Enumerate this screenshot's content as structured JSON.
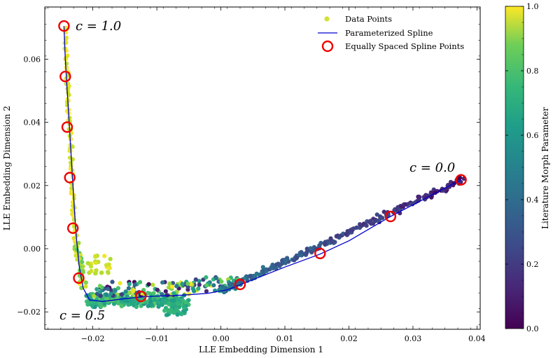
{
  "chart_data": {
    "type": "scatter",
    "xlabel": "LLE Embedding Dimension 1",
    "ylabel": "LLE Embedding Dimension 2",
    "xlim": [
      -0.0275,
      0.0405
    ],
    "ylim": [
      -0.0255,
      0.0765
    ],
    "x_ticks": [
      -0.02,
      -0.01,
      0.0,
      0.01,
      0.02,
      0.03,
      0.04
    ],
    "y_ticks": [
      -0.02,
      0.0,
      0.02,
      0.04,
      0.06
    ],
    "x_tick_labels": [
      "−0.02",
      "−0.01",
      "0.00",
      "0.01",
      "0.02",
      "0.03",
      "0.04"
    ],
    "y_tick_labels": [
      "−0.02",
      "0.00",
      "0.02",
      "0.04",
      "0.06"
    ],
    "legend_placement": "top-right",
    "legend": [
      "Data Points",
      "Parameterized Spline",
      "Equally Spaced Spline Points"
    ],
    "colorbar": {
      "label": "Literature Morph Parameter",
      "range": [
        0,
        1
      ],
      "ticks": [
        0.0,
        0.2,
        0.4,
        0.6,
        0.8,
        1.0
      ],
      "tick_labels": [
        "0.0",
        "0.2",
        "0.4",
        "0.6",
        "0.8",
        "1.0"
      ],
      "colormap": "viridis"
    },
    "annotations": [
      {
        "text": "c = 1.0",
        "x": -0.0225,
        "y": 0.0705
      },
      {
        "text": "c = 0.0",
        "x": 0.0295,
        "y": 0.0252
      },
      {
        "text": "c = 0.5",
        "x": -0.0255,
        "y": -0.0212
      }
    ],
    "series": [
      {
        "name": "Parameterized Spline",
        "type": "line",
        "color": "#0000cc",
        "points": [
          [
            -0.0245,
            0.0705
          ],
          [
            -0.0243,
            0.06
          ],
          [
            -0.024,
            0.05
          ],
          [
            -0.0237,
            0.04
          ],
          [
            -0.0234,
            0.03
          ],
          [
            -0.0231,
            0.02
          ],
          [
            -0.0228,
            0.01
          ],
          [
            -0.0225,
            0.002
          ],
          [
            -0.0221,
            -0.006
          ],
          [
            -0.0215,
            -0.0125
          ],
          [
            -0.0205,
            -0.0162
          ],
          [
            -0.0185,
            -0.0167
          ],
          [
            -0.015,
            -0.0158
          ],
          [
            -0.012,
            -0.0152
          ],
          [
            -0.006,
            -0.0147
          ],
          [
            -0.002,
            -0.0141
          ],
          [
            0.001,
            -0.013
          ],
          [
            0.005,
            -0.0098
          ],
          [
            0.01,
            -0.0058
          ],
          [
            0.0155,
            -0.0017
          ],
          [
            0.02,
            0.0025
          ],
          [
            0.0265,
            0.0102
          ],
          [
            0.032,
            0.016
          ],
          [
            0.0375,
            0.0218
          ]
        ]
      },
      {
        "name": "Equally Spaced Spline Points",
        "type": "scatter",
        "color": "#ee0000",
        "points": [
          [
            -0.0245,
            0.0705
          ],
          [
            -0.0243,
            0.0545
          ],
          [
            -0.024,
            0.0385
          ],
          [
            -0.0236,
            0.0225
          ],
          [
            -0.0231,
            0.0065
          ],
          [
            -0.0222,
            -0.0093
          ],
          [
            -0.0125,
            -0.0151
          ],
          [
            0.003,
            -0.0113
          ],
          [
            0.0155,
            -0.0015
          ],
          [
            0.0265,
            0.0102
          ],
          [
            0.0375,
            0.0218
          ]
        ]
      },
      {
        "name": "Data Points",
        "type": "scatter",
        "colored_by": "Literature Morph Parameter",
        "points": []
      }
    ]
  }
}
